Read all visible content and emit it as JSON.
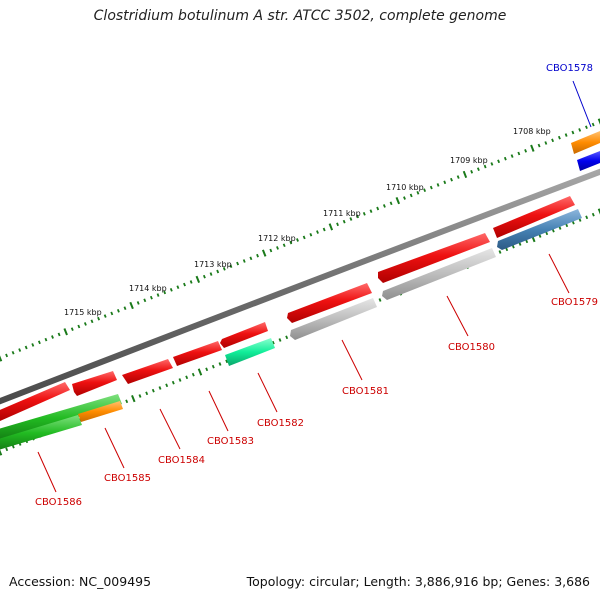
{
  "title": "Clostridium botulinum A str. ATCC 3502, complete genome",
  "accession": "Accession: NC_009495",
  "summary": "Topology: circular; Length: 3,886,916 bp; Genes: 3,686",
  "kbp_labels": [
    "1708 kbp",
    "1709 kbp",
    "1710 kbp",
    "1711 kbp",
    "1712 kbp",
    "1713 kbp",
    "1714 kbp",
    "1715 kbp"
  ],
  "colors": {
    "backbone": "#7a7a7a",
    "tick": "#1a7a1a",
    "red": "#ee1111",
    "grey": "#b3b3b3",
    "steelblue": "#4682b4",
    "orange": "#ff8c00",
    "blue": "#0000ee",
    "green": "#22bb22",
    "springgreen": "#11ee99",
    "label_red": "#cc0000",
    "label_blue": "#0000cc"
  },
  "gene_labels": [
    {
      "name": "CBO1578",
      "color": "blue"
    },
    {
      "name": "CBO1579",
      "color": "red"
    },
    {
      "name": "CBO1580",
      "color": "red"
    },
    {
      "name": "CBO1581",
      "color": "red"
    },
    {
      "name": "CBO1582",
      "color": "red"
    },
    {
      "name": "CBO1583",
      "color": "red"
    },
    {
      "name": "CBO1584",
      "color": "red"
    },
    {
      "name": "CBO1585",
      "color": "red"
    },
    {
      "name": "CBO1586",
      "color": "red"
    }
  ]
}
